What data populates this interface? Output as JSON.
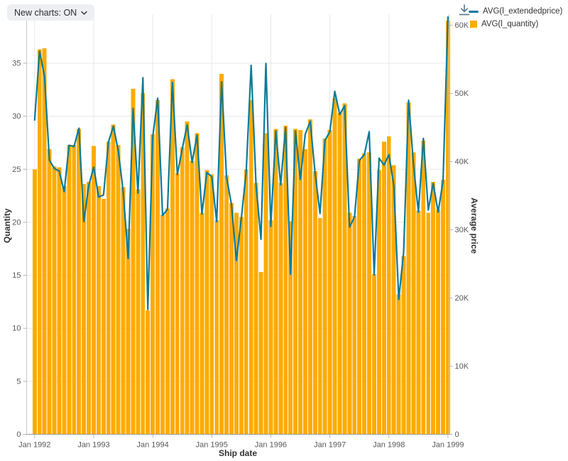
{
  "toolbar": {
    "new_charts_label": "New charts: ON"
  },
  "icons": {
    "download": "download-icon",
    "chevron": "chevron-down-icon"
  },
  "legend": {
    "items": [
      {
        "label": "AVG(l_extendedprice)",
        "marker": "line",
        "color": "#077A9D"
      },
      {
        "label": "AVG(l_quantity)",
        "marker": "square",
        "color": "#FFAB00"
      }
    ]
  },
  "colors": {
    "bar": "#FFAB00",
    "line": "#0C7A96",
    "grid": "#e8e8e8",
    "axis_line": "#c9c9c9",
    "baseline": "#9a9a9a",
    "tick": "#b5b5b5",
    "tick_label": "#595959",
    "axis_title": "#303030",
    "pill_bg": "#edeff2",
    "icon": "#5f7d8c"
  },
  "chart_data": {
    "type": "combo",
    "x_start": "Jan 1992",
    "x_interval": "month",
    "n_points": 85,
    "x_tick_labels": [
      "Jan 1992",
      "Jan 1993",
      "Jan 1994",
      "Jan 1995",
      "Jan 1996",
      "Jan 1997",
      "Jan 1998",
      "Jan 1999"
    ],
    "x_tick_indices": [
      0,
      12,
      24,
      36,
      48,
      60,
      72,
      84
    ],
    "xlabel": "Ship date",
    "grid": true,
    "legend_position": "top-right",
    "axes": {
      "left": {
        "title": "Quantity",
        "ticks": [
          0,
          5,
          10,
          15,
          20,
          25,
          30,
          35
        ],
        "max": 39.6
      },
      "right": {
        "title": "Average price",
        "ticks": [
          0,
          10000,
          20000,
          30000,
          40000,
          50000,
          60000
        ],
        "tick_format": "K",
        "max": 62000
      }
    },
    "series": [
      {
        "name": "AVG(l_quantity)",
        "type": "bar",
        "axis": "left",
        "color": "#FFAB00",
        "values": [
          25.0,
          36.3,
          36.4,
          26.9,
          25.3,
          25.2,
          23.4,
          27.3,
          27.3,
          28.8,
          23.6,
          23.8,
          27.2,
          23.4,
          22.2,
          27.6,
          29.2,
          27.3,
          23.3,
          19.4,
          32.6,
          23.1,
          32.2,
          11.7,
          28.3,
          31.5,
          20.7,
          21.3,
          33.5,
          24.6,
          27.1,
          29.5,
          25.8,
          28.4,
          20.9,
          24.9,
          24.5,
          20.2,
          34.0,
          24.4,
          21.8,
          20.9,
          20.5,
          25.0,
          31.5,
          23.7,
          15.3,
          28.4,
          20.2,
          28.8,
          23.7,
          29.1,
          20.1,
          28.8,
          28.7,
          26.9,
          29.7,
          24.8,
          20.4,
          27.9,
          28.7,
          31.7,
          30.3,
          31.2,
          20.9,
          20.6,
          26.0,
          26.5,
          26.6,
          15.1,
          24.9,
          27.6,
          28.1,
          25.4,
          13.2,
          16.8,
          31.3,
          26.6,
          21.1,
          27.7,
          20.9,
          23.8,
          21.2,
          24.0,
          39.0
        ]
      },
      {
        "name": "AVG(l_extendedprice)",
        "type": "line",
        "axis": "right",
        "color": "#0C7A96",
        "values": [
          46100,
          56200,
          52500,
          40200,
          39000,
          38600,
          35600,
          42400,
          42200,
          44900,
          31200,
          36500,
          39200,
          34800,
          35100,
          42900,
          45200,
          41600,
          35600,
          25800,
          47800,
          35400,
          52300,
          18300,
          43600,
          49300,
          32100,
          33000,
          51600,
          38100,
          41900,
          45400,
          39900,
          43900,
          32300,
          38400,
          37800,
          31200,
          51700,
          37700,
          33700,
          25500,
          31700,
          38600,
          54100,
          36600,
          28600,
          54400,
          30500,
          44500,
          36600,
          45000,
          23500,
          44500,
          37400,
          44000,
          45900,
          38300,
          32400,
          43100,
          44400,
          50300,
          46900,
          48200,
          30400,
          31900,
          40200,
          41000,
          44400,
          23400,
          40500,
          39500,
          41000,
          36500,
          19800,
          26700,
          49000,
          39500,
          32600,
          43400,
          32900,
          36800,
          32600,
          37100,
          61200
        ]
      }
    ]
  }
}
